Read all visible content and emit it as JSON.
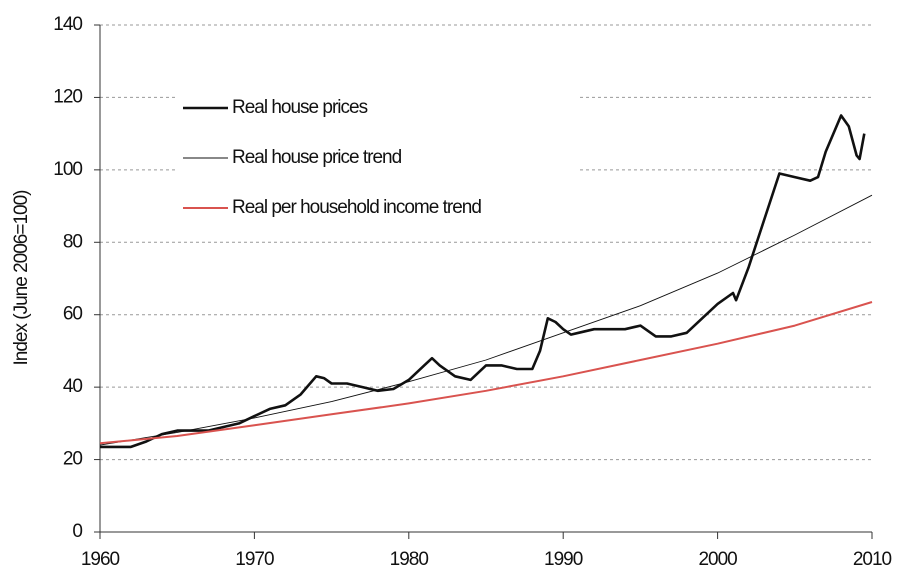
{
  "chart_data": {
    "type": "line",
    "y_label": "Index (June 2006=100)",
    "xlim": [
      1960,
      2010
    ],
    "xticks": [
      1960,
      1970,
      1980,
      1990,
      2000,
      2010
    ],
    "ylim": [
      0,
      140
    ],
    "yticks": [
      0,
      20,
      40,
      60,
      80,
      100,
      120,
      140
    ],
    "grid": true,
    "legend": "upper left",
    "series": [
      {
        "name": "Real house prices",
        "color": "#111111",
        "width": 2.6,
        "x": [
          1960,
          1962,
          1963,
          1964,
          1965,
          1966,
          1967,
          1968,
          1969,
          1970,
          1971,
          1972,
          1973,
          1974,
          1974.5,
          1975,
          1976,
          1977,
          1978,
          1979,
          1980,
          1981,
          1981.5,
          1982,
          1983,
          1984,
          1985,
          1986,
          1987,
          1988,
          1988.5,
          1989,
          1989.5,
          1990,
          1990.5,
          1991,
          1992,
          1993,
          1994,
          1995,
          1996,
          1997,
          1998,
          1999,
          2000,
          2001,
          2001.2,
          2002,
          2003,
          2004,
          2005,
          2006,
          2006.5,
          2007,
          2008,
          2008.5,
          2009,
          2009.2,
          2009.5
        ],
        "values": [
          23.5,
          23.5,
          25,
          27,
          28,
          28,
          28,
          29,
          30,
          32,
          34,
          35,
          38,
          43,
          42.5,
          41,
          41,
          40,
          39,
          39.5,
          42,
          46,
          48,
          46,
          43,
          42,
          46,
          46,
          45,
          45,
          50,
          59,
          58,
          56,
          54.5,
          55,
          56,
          56,
          56,
          57,
          54,
          54,
          55,
          59,
          63,
          66,
          64,
          73,
          86,
          99,
          98,
          97,
          98,
          105,
          115,
          112,
          104,
          103,
          110
        ]
      },
      {
        "name": "Real house price trend",
        "color": "#111111",
        "width": 0.9,
        "x": [
          1960,
          1965,
          1970,
          1975,
          1980,
          1985,
          1990,
          1995,
          2000,
          2005,
          2010
        ],
        "values": [
          24,
          27.5,
          31.5,
          36,
          41.5,
          47.5,
          55,
          62.5,
          71.5,
          82,
          93
        ]
      },
      {
        "name": "Real per household income trend",
        "color": "#d9534f",
        "width": 2,
        "x": [
          1960,
          1965,
          1970,
          1975,
          1980,
          1985,
          1990,
          1995,
          2000,
          2005,
          2010
        ],
        "values": [
          24.5,
          26.5,
          29.5,
          32.5,
          35.5,
          39,
          43,
          47.5,
          52,
          57,
          63.5
        ]
      }
    ]
  }
}
